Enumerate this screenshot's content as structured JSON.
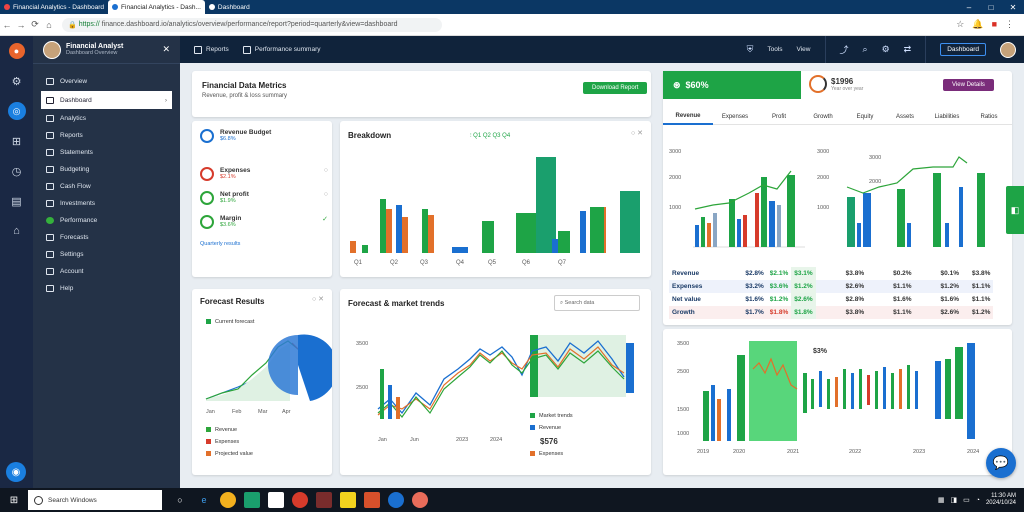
{
  "browser": {
    "tabs": [
      {
        "label": "Financial Analytics - Dashboard",
        "active": false
      },
      {
        "label": "Financial Analytics - Dash...",
        "active": true
      },
      {
        "label": "Dashboard",
        "active": false
      }
    ],
    "url_secure": "https://",
    "url": "finance.dashboard.io/analytics/overview/performance/report?period=quarterly&view=dashboard"
  },
  "sidebar": {
    "user_name": "Financial Analyst",
    "user_role": "Dashboard Overview",
    "items": [
      {
        "label": "Overview"
      },
      {
        "label": "Dashboard"
      },
      {
        "label": "Analytics"
      },
      {
        "label": "Reports"
      },
      {
        "label": "Statements"
      },
      {
        "label": "Budgeting"
      },
      {
        "label": "Cash Flow"
      },
      {
        "label": "Investments"
      },
      {
        "label": "Performance"
      },
      {
        "label": "Forecasts"
      },
      {
        "label": "Settings"
      },
      {
        "label": "Account"
      },
      {
        "label": "Help"
      }
    ]
  },
  "header": {
    "btn1": "Reports",
    "btn2": "Performance summary",
    "tools": "Tools",
    "view": "View",
    "cta": "Dashboard"
  },
  "summary": {
    "title": "Financial Data Metrics",
    "subtitle": "Revenue, profit & loss summary",
    "button": "Download Report"
  },
  "kpi_green": {
    "value": "$60%"
  },
  "kpi_ring": {
    "value": "$1996",
    "sub": "Year over year",
    "button": "View Details"
  },
  "tabs": [
    "Revenue",
    "Expenses",
    "Profit",
    "Growth",
    "Equity",
    "Assets",
    "Liabilities",
    "Ratios"
  ],
  "metrics": {
    "items": [
      {
        "name": "Revenue Budget",
        "value": "$6.8%"
      },
      {
        "name": "Expenses",
        "value": "$2.1%"
      },
      {
        "name": "Net profit",
        "value": "$1.9%"
      },
      {
        "name": "Margin",
        "value": "$3.6%"
      }
    ],
    "footer": "Quarterly results"
  },
  "bar_card": {
    "title": "Breakdown",
    "legend": "Q1 Q2 Q3 Q4",
    "xlabels": [
      "Q1",
      "Q2",
      "Q3",
      "Q4",
      "Q5",
      "Q6",
      "Q7"
    ]
  },
  "pie_card": {
    "title": "Forecast Results",
    "legend_top": "Current forecast",
    "xlabels": [
      "Jan",
      "Feb",
      "Mar",
      "Apr"
    ],
    "legend": [
      "Revenue",
      "Expenses",
      "Projected value"
    ]
  },
  "trend_card": {
    "title": "Forecast & market trends",
    "search": "Search data",
    "yvals": [
      "3500",
      "2500"
    ],
    "xlabels": [
      "Jan",
      "Jun",
      "2023",
      "2024"
    ],
    "legend": [
      "Market trends",
      "Revenue",
      "Expenses"
    ],
    "value": "$576"
  },
  "right_top": {
    "y1": [
      "3000",
      "2000",
      "1000"
    ],
    "y2": [
      "3000",
      "2000",
      "1000"
    ],
    "y3": [
      "3000",
      "2000"
    ]
  },
  "table": {
    "rows": [
      [
        "Revenue",
        "$2.8%",
        "$2.1%",
        "$3.1%",
        "$3.8%",
        "$0.2%",
        "$0.1%",
        "$3.8%"
      ],
      [
        "Expenses",
        "$3.2%",
        "$3.6%",
        "$1.2%",
        "$2.6%",
        "$1.1%",
        "$1.2%",
        "$1.1%"
      ],
      [
        "Net value",
        "$1.6%",
        "$1.2%",
        "$2.6%",
        "$2.8%",
        "$1.6%",
        "$1.6%",
        "$1.1%"
      ],
      [
        "Growth",
        "$1.7%",
        "$1.8%",
        "$1.8%",
        "$3.8%",
        "$1.1%",
        "$2.6%",
        "$1.2%"
      ]
    ]
  },
  "right_bottom": {
    "yvals": [
      "3500",
      "2500",
      "1500",
      "1000"
    ],
    "value": "$3%",
    "xlabels": [
      "2019",
      "2020",
      "2021",
      "2022",
      "2023",
      "2024"
    ]
  },
  "taskbar": {
    "search": "Search Windows",
    "time": "11:30 AM",
    "date": "2024/10/24"
  },
  "colors": {
    "green": "#1ea446",
    "blue": "#1a6fd0",
    "orange": "#e2702a",
    "red": "#d63b2b",
    "navy": "#10233b"
  }
}
